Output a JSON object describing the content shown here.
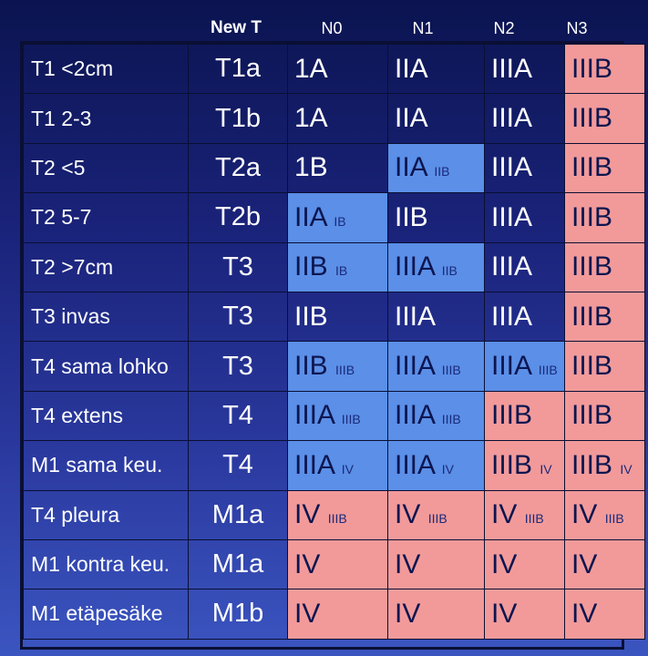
{
  "headers": {
    "new_t": "New T",
    "n0": "N0",
    "n1": "N1",
    "n2": "N2",
    "n3": "N3"
  },
  "colors": {
    "blue_cell": "#5b8fe8",
    "pink_cell": "#f29a9a",
    "background_dark": "#0b1450"
  },
  "rows": [
    {
      "label": "T1 <2cm",
      "new_t": "T1a",
      "n0": {
        "main": "1A",
        "sub": ""
      },
      "n1": {
        "main": "IIA",
        "sub": ""
      },
      "n2": {
        "main": "IIIA",
        "sub": ""
      },
      "n3": {
        "main": "IIIB",
        "sub": ""
      }
    },
    {
      "label": "T1 2-3",
      "new_t": "T1b",
      "n0": {
        "main": "1A",
        "sub": ""
      },
      "n1": {
        "main": "IIA",
        "sub": ""
      },
      "n2": {
        "main": "IIIA",
        "sub": ""
      },
      "n3": {
        "main": "IIIB",
        "sub": ""
      }
    },
    {
      "label": "T2 <5",
      "new_t": "T2a",
      "n0": {
        "main": "1B",
        "sub": ""
      },
      "n1": {
        "main": "IIA",
        "sub": "IIB"
      },
      "n2": {
        "main": "IIIA",
        "sub": ""
      },
      "n3": {
        "main": "IIIB",
        "sub": ""
      }
    },
    {
      "label": "T2 5-7",
      "new_t": "T2b",
      "n0": {
        "main": "IIA",
        "sub": "IB"
      },
      "n1": {
        "main": "IIB",
        "sub": ""
      },
      "n2": {
        "main": "IIIA",
        "sub": ""
      },
      "n3": {
        "main": "IIIB",
        "sub": ""
      }
    },
    {
      "label": "T2 >7cm",
      "new_t": "T3",
      "n0": {
        "main": "IIB",
        "sub": "IB"
      },
      "n1": {
        "main": "IIIA",
        "sub": "IIB"
      },
      "n2": {
        "main": "IIIA",
        "sub": ""
      },
      "n3": {
        "main": "IIIB",
        "sub": ""
      }
    },
    {
      "label": "T3 invas",
      "new_t": "T3",
      "n0": {
        "main": "IIB",
        "sub": ""
      },
      "n1": {
        "main": "IIIA",
        "sub": ""
      },
      "n2": {
        "main": "IIIA",
        "sub": ""
      },
      "n3": {
        "main": "IIIB",
        "sub": ""
      }
    },
    {
      "label": "T4 sama lohko",
      "new_t": "T3",
      "n0": {
        "main": "IIB",
        "sub": "IIIB"
      },
      "n1": {
        "main": "IIIA",
        "sub": "IIIB"
      },
      "n2": {
        "main": "IIIA",
        "sub": "IIIB"
      },
      "n3": {
        "main": "IIIB",
        "sub": ""
      }
    },
    {
      "label": "T4 extens",
      "new_t": "T4",
      "n0": {
        "main": "IIIA",
        "sub": "IIIB"
      },
      "n1": {
        "main": "IIIA",
        "sub": "IIIB"
      },
      "n2": {
        "main": "IIIB",
        "sub": ""
      },
      "n3": {
        "main": "IIIB",
        "sub": ""
      }
    },
    {
      "label": "M1 sama keu.",
      "new_t": "T4",
      "n0": {
        "main": "IIIA",
        "sub": "IV"
      },
      "n1": {
        "main": "IIIA",
        "sub": "IV"
      },
      "n2": {
        "main": "IIIB",
        "sub": "IV"
      },
      "n3": {
        "main": "IIIB",
        "sub": "IV"
      }
    },
    {
      "label": "T4 pleura",
      "new_t": "M1a",
      "n0": {
        "main": "IV",
        "sub": "IIIB"
      },
      "n1": {
        "main": "IV",
        "sub": "IIIB"
      },
      "n2": {
        "main": "IV",
        "sub": "IIIB"
      },
      "n3": {
        "main": "IV",
        "sub": "IIIB"
      }
    },
    {
      "label": "M1 kontra keu.",
      "new_t": "M1a",
      "n0": {
        "main": "IV",
        "sub": ""
      },
      "n1": {
        "main": "IV",
        "sub": ""
      },
      "n2": {
        "main": "IV",
        "sub": ""
      },
      "n3": {
        "main": "IV",
        "sub": ""
      }
    },
    {
      "label": "M1 etäpesäke",
      "new_t": "M1b",
      "n0": {
        "main": "IV",
        "sub": ""
      },
      "n1": {
        "main": "IV",
        "sub": ""
      },
      "n2": {
        "main": "IV",
        "sub": ""
      },
      "n3": {
        "main": "IV",
        "sub": ""
      }
    }
  ]
}
